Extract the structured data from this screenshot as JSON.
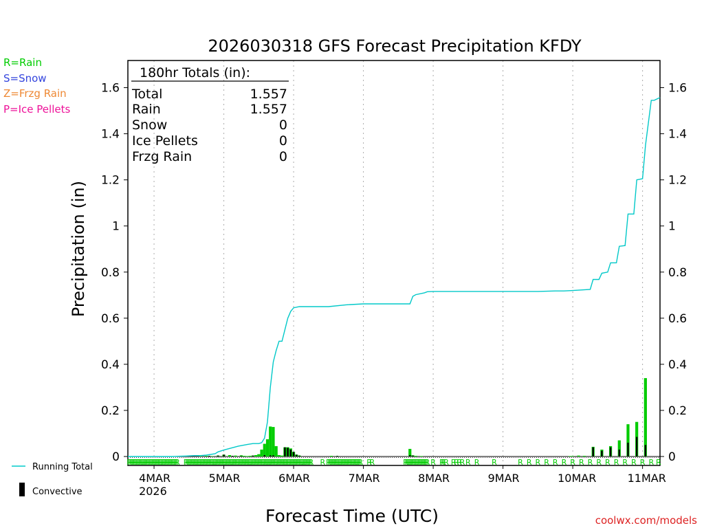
{
  "chart_data": {
    "type": "bar",
    "title": "2026030318 GFS Forecast Precipitation KFDY",
    "xlabel": "Forecast Time (UTC)",
    "ylabel": "Precipitation (in)",
    "ylim": [
      0,
      1.7
    ],
    "y_ticks": [
      0,
      0.2,
      0.4,
      0.6,
      0.8,
      1,
      1.2,
      1.4,
      1.6
    ],
    "y_tick_labels": [
      "0",
      "0.2",
      "0.4",
      "0.6",
      "0.8",
      "1",
      "1.2",
      "1.4",
      "1.6"
    ],
    "x_range_hours": [
      -3,
      180
    ],
    "x_ticks": [
      {
        "hour": 6,
        "label": "4MAR",
        "sublabel": "2026"
      },
      {
        "hour": 30,
        "label": "5MAR",
        "sublabel": ""
      },
      {
        "hour": 54,
        "label": "6MAR",
        "sublabel": ""
      },
      {
        "hour": 78,
        "label": "7MAR",
        "sublabel": ""
      },
      {
        "hour": 102,
        "label": "8MAR",
        "sublabel": ""
      },
      {
        "hour": 126,
        "label": "9MAR",
        "sublabel": ""
      },
      {
        "hour": 150,
        "label": "10MAR",
        "sublabel": ""
      },
      {
        "hour": 174,
        "label": "11MAR",
        "sublabel": ""
      }
    ],
    "totals": {
      "heading": "180hr Totals (in):",
      "rows": [
        {
          "label": "Total",
          "value": "1.557"
        },
        {
          "label": "Rain",
          "value": "1.557"
        },
        {
          "label": "Snow",
          "value": "0"
        },
        {
          "label": "Ice Pellets",
          "value": "0"
        },
        {
          "label": "Frzg Rain",
          "value": "0"
        }
      ]
    },
    "precip_legend": [
      {
        "text": "R=Rain",
        "color": "#00cc00"
      },
      {
        "text": "S=Snow",
        "color": "#3344dd"
      },
      {
        "text": "Z=Frzg Rain",
        "color": "#ee8833"
      },
      {
        "text": "P=Ice Pellets",
        "color": "#ee1199"
      }
    ],
    "series_legend": [
      {
        "text": "Running Total",
        "color": "#00cccc",
        "kind": "line"
      },
      {
        "text": "Convective",
        "color": "#000000",
        "kind": "bar"
      }
    ],
    "running_total": {
      "name": "Running Total",
      "hours": [
        -3,
        12,
        17,
        20,
        22,
        24,
        27,
        28,
        30,
        32,
        35,
        38,
        40,
        42,
        43,
        44,
        45,
        46,
        47,
        48,
        49,
        50,
        51,
        52,
        53,
        54,
        56,
        60,
        66,
        72,
        78,
        84,
        90,
        94,
        95,
        96,
        99,
        100,
        102,
        114,
        126,
        138,
        144,
        147,
        150,
        156,
        157,
        159,
        160,
        162,
        163,
        165,
        166,
        168,
        169,
        171,
        172,
        174,
        175,
        177,
        178,
        180
      ],
      "values": [
        0,
        0,
        0.002,
        0.004,
        0.004,
        0.006,
        0.012,
        0.02,
        0.028,
        0.035,
        0.045,
        0.052,
        0.056,
        0.056,
        0.06,
        0.08,
        0.15,
        0.3,
        0.41,
        0.46,
        0.5,
        0.5,
        0.55,
        0.6,
        0.63,
        0.645,
        0.65,
        0.65,
        0.65,
        0.658,
        0.662,
        0.662,
        0.662,
        0.662,
        0.695,
        0.702,
        0.71,
        0.715,
        0.716,
        0.716,
        0.716,
        0.716,
        0.718,
        0.718,
        0.72,
        0.725,
        0.768,
        0.768,
        0.795,
        0.8,
        0.84,
        0.84,
        0.912,
        0.915,
        1.052,
        1.052,
        1.2,
        1.205,
        1.35,
        1.545,
        1.545,
        1.557
      ]
    },
    "rain_bars": {
      "name": "Rain",
      "hours": [
        22,
        24,
        26,
        28,
        30,
        32,
        34,
        36,
        37,
        38,
        39,
        40,
        41,
        42,
        43,
        44,
        45,
        46,
        47,
        48,
        49,
        50,
        51,
        52,
        53,
        54,
        55,
        56,
        67,
        69,
        94,
        95,
        96,
        98,
        149,
        150,
        152,
        154,
        157,
        160,
        163,
        166,
        169,
        172,
        175
      ],
      "values": [
        0.002,
        0.003,
        0.002,
        0.004,
        0.008,
        0.006,
        0.004,
        0.005,
        0.003,
        0.002,
        0.003,
        0.004,
        0.006,
        0.01,
        0.03,
        0.055,
        0.075,
        0.13,
        0.128,
        0.045,
        0.006,
        0.004,
        0.04,
        0.04,
        0.035,
        0.02,
        0.008,
        0.004,
        0.003,
        0.002,
        0.033,
        0.005,
        0.003,
        0.002,
        0.002,
        0.002,
        0.004,
        0.003,
        0.042,
        0.03,
        0.045,
        0.07,
        0.14,
        0.15,
        0.34
      ]
    },
    "convective_bars": {
      "name": "Convective",
      "hours": [
        25,
        28,
        30,
        33,
        36,
        40,
        44,
        46,
        47,
        51,
        52,
        53,
        54,
        55,
        56,
        69,
        94,
        95,
        157,
        160,
        163,
        166,
        169,
        172,
        175
      ],
      "values": [
        0.003,
        0.004,
        0.008,
        0.003,
        0.002,
        0.004,
        0.006,
        0.005,
        0.005,
        0.04,
        0.038,
        0.03,
        0.02,
        0.008,
        0.004,
        0.003,
        0.006,
        0.004,
        0.04,
        0.025,
        0.04,
        0.03,
        0.06,
        0.085,
        0.05
      ]
    },
    "ptype_markers": {
      "hours": [
        -2.5,
        -2,
        -1.5,
        -1,
        -0.5,
        0,
        0.5,
        1,
        1.5,
        2,
        2.5,
        3,
        3.5,
        4,
        4.5,
        5,
        5.5,
        6,
        6.5,
        7,
        7.5,
        8,
        8.5,
        9,
        9.5,
        10,
        10.5,
        11,
        11.5,
        12,
        12.5,
        13,
        13.5,
        14,
        17,
        17.5,
        18,
        18.5,
        19,
        19.5,
        20,
        20.5,
        21,
        21.5,
        22,
        22.5,
        23,
        23.5,
        24,
        24.5,
        25,
        25.5,
        26,
        26.5,
        27,
        27.5,
        28,
        28.5,
        29,
        29.5,
        30,
        30.5,
        31,
        31.5,
        32,
        32.5,
        33,
        33.5,
        34,
        34.5,
        35,
        35.5,
        36,
        36.5,
        37,
        37.5,
        38,
        38.5,
        39,
        39.5,
        40,
        40.5,
        41,
        41.5,
        42,
        42.5,
        43,
        43.5,
        44,
        44.5,
        45,
        45.5,
        46,
        46.5,
        47,
        47.5,
        48,
        48.5,
        49,
        49.5,
        50,
        50.5,
        51,
        51.5,
        52,
        52.5,
        53,
        53.5,
        54,
        54.5,
        55,
        55.5,
        56,
        56.5,
        57,
        57.5,
        58,
        58.5,
        59,
        59.5,
        60,
        64,
        66,
        66.5,
        67,
        67.5,
        68,
        68.5,
        69,
        69.5,
        70,
        70.5,
        71,
        71.5,
        72,
        72.5,
        73,
        73.5,
        74,
        74.5,
        75,
        75.5,
        76,
        76.5,
        77,
        80,
        81,
        92.5,
        93,
        93.5,
        94,
        94.5,
        95,
        95.5,
        96,
        96.5,
        97,
        97.5,
        98,
        98.5,
        99,
        99.5,
        100,
        102,
        105,
        105.5,
        106.5,
        109,
        110,
        111,
        112,
        114,
        117,
        123,
        132,
        135,
        138,
        141,
        144,
        147,
        150,
        153,
        156,
        159,
        162,
        165,
        168,
        171,
        174,
        177,
        179.5
      ],
      "label": "R",
      "color": "#00cc00"
    },
    "credit": "coolwx.com/models"
  }
}
